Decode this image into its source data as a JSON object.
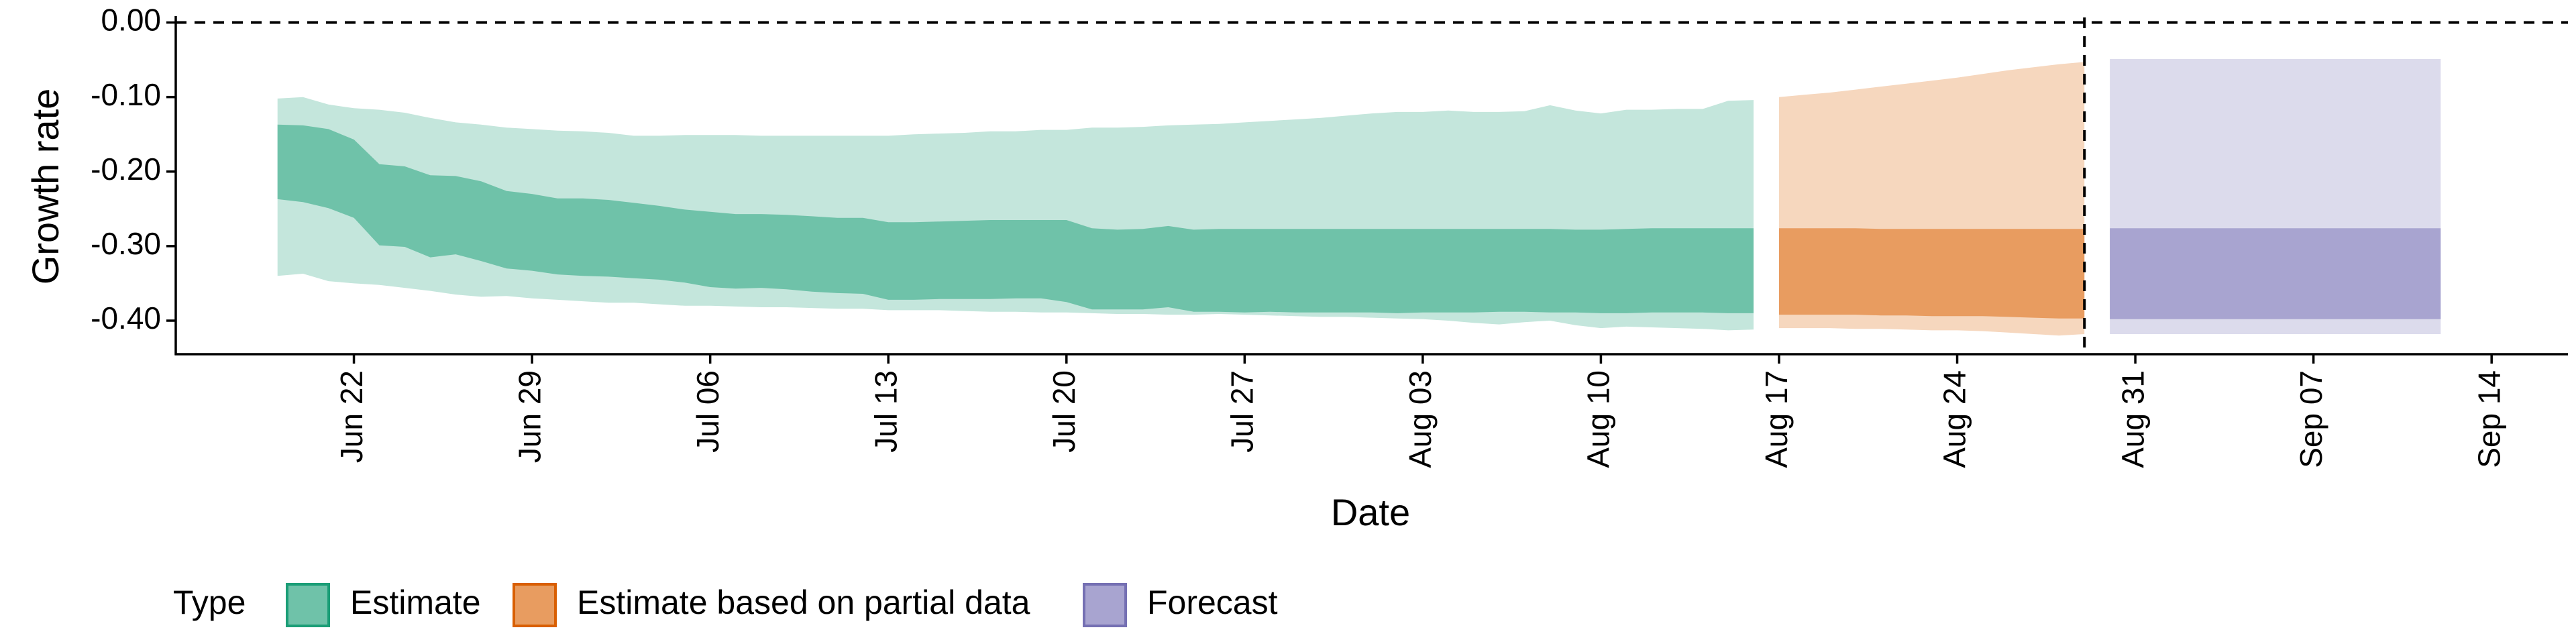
{
  "chart_data": {
    "type": "area",
    "xlabel": "Date",
    "ylabel": "Growth rate",
    "ylim": [
      -0.445,
      0.005
    ],
    "xlim": [
      "2020-06-15",
      "2020-09-17"
    ],
    "x_ticks": [
      "2020-06-22",
      "2020-06-29",
      "2020-07-06",
      "2020-07-13",
      "2020-07-20",
      "2020-07-27",
      "2020-08-03",
      "2020-08-10",
      "2020-08-17",
      "2020-08-24",
      "2020-08-31",
      "2020-09-07",
      "2020-09-14"
    ],
    "x_tick_labels": [
      "Jun 22",
      "Jun 29",
      "Jul 06",
      "Jul 13",
      "Jul 20",
      "Jul 27",
      "Aug 03",
      "Aug 10",
      "Aug 17",
      "Aug 24",
      "Aug 31",
      "Sep 07",
      "Sep 14"
    ],
    "y_ticks": [
      0.0,
      -0.1,
      -0.2,
      -0.3,
      -0.4
    ],
    "y_tick_labels": [
      "0.00",
      "-0.10",
      "-0.20",
      "-0.30",
      "-0.40"
    ],
    "reference_lines": {
      "horizontal_y": 0.0,
      "vertical_x": "2020-08-29",
      "style": "dashed"
    },
    "legend": {
      "title": "Type",
      "position": "bottom-left",
      "entries": [
        "Estimate",
        "Estimate based on partial data",
        "Forecast"
      ]
    },
    "colors": {
      "Estimate": {
        "outer": "#c4e6dc",
        "inner": "#6fc2a9",
        "key_fill": "#6fc2a9",
        "key_border": "#1b9e77"
      },
      "Estimate based on partial data": {
        "outer": "#f6d7be",
        "inner": "#e89c60",
        "key_fill": "#e89c60",
        "key_border": "#d95f02"
      },
      "Forecast": {
        "outer": "#dcdbec",
        "inner": "#a8a4d0",
        "key_fill": "#a8a4d0",
        "key_border": "#7570b3"
      }
    },
    "series": [
      {
        "name": "Estimate",
        "x": [
          "2020-06-19",
          "2020-06-20",
          "2020-06-21",
          "2020-06-22",
          "2020-06-23",
          "2020-06-24",
          "2020-06-25",
          "2020-06-26",
          "2020-06-27",
          "2020-06-28",
          "2020-06-29",
          "2020-06-30",
          "2020-07-01",
          "2020-07-02",
          "2020-07-03",
          "2020-07-04",
          "2020-07-05",
          "2020-07-06",
          "2020-07-07",
          "2020-07-08",
          "2020-07-09",
          "2020-07-10",
          "2020-07-11",
          "2020-07-12",
          "2020-07-13",
          "2020-07-14",
          "2020-07-15",
          "2020-07-16",
          "2020-07-17",
          "2020-07-18",
          "2020-07-19",
          "2020-07-20",
          "2020-07-21",
          "2020-07-22",
          "2020-07-23",
          "2020-07-24",
          "2020-07-25",
          "2020-07-26",
          "2020-07-27",
          "2020-07-28",
          "2020-07-29",
          "2020-07-30",
          "2020-07-31",
          "2020-08-01",
          "2020-08-02",
          "2020-08-03",
          "2020-08-04",
          "2020-08-05",
          "2020-08-06",
          "2020-08-07",
          "2020-08-08",
          "2020-08-09",
          "2020-08-10",
          "2020-08-11",
          "2020-08-12",
          "2020-08-13",
          "2020-08-14",
          "2020-08-15",
          "2020-08-16"
        ],
        "lower_90": [
          -0.34,
          -0.337,
          -0.347,
          -0.35,
          -0.352,
          -0.356,
          -0.36,
          -0.365,
          -0.368,
          -0.367,
          -0.37,
          -0.372,
          -0.374,
          -0.376,
          -0.376,
          -0.378,
          -0.38,
          -0.38,
          -0.381,
          -0.382,
          -0.382,
          -0.383,
          -0.384,
          -0.384,
          -0.386,
          -0.386,
          -0.386,
          -0.387,
          -0.388,
          -0.388,
          -0.389,
          -0.389,
          -0.39,
          -0.391,
          -0.391,
          -0.392,
          -0.392,
          -0.391,
          -0.392,
          -0.393,
          -0.394,
          -0.395,
          -0.395,
          -0.396,
          -0.397,
          -0.398,
          -0.4,
          -0.403,
          -0.405,
          -0.402,
          -0.4,
          -0.406,
          -0.41,
          -0.408,
          -0.409,
          -0.41,
          -0.411,
          -0.413,
          -0.412
        ],
        "lower_50": [
          -0.237,
          -0.241,
          -0.249,
          -0.262,
          -0.299,
          -0.301,
          -0.315,
          -0.311,
          -0.32,
          -0.33,
          -0.333,
          -0.338,
          -0.34,
          -0.341,
          -0.343,
          -0.345,
          -0.349,
          -0.355,
          -0.357,
          -0.356,
          -0.358,
          -0.361,
          -0.363,
          -0.364,
          -0.372,
          -0.372,
          -0.371,
          -0.371,
          -0.371,
          -0.37,
          -0.37,
          -0.375,
          -0.385,
          -0.385,
          -0.385,
          -0.382,
          -0.388,
          -0.388,
          -0.389,
          -0.388,
          -0.389,
          -0.389,
          -0.389,
          -0.389,
          -0.39,
          -0.389,
          -0.389,
          -0.389,
          -0.388,
          -0.388,
          -0.389,
          -0.389,
          -0.39,
          -0.39,
          -0.389,
          -0.389,
          -0.389,
          -0.39,
          -0.39
        ],
        "upper_50": [
          -0.137,
          -0.138,
          -0.143,
          -0.157,
          -0.19,
          -0.193,
          -0.205,
          -0.206,
          -0.213,
          -0.226,
          -0.23,
          -0.236,
          -0.236,
          -0.238,
          -0.242,
          -0.246,
          -0.251,
          -0.254,
          -0.257,
          -0.257,
          -0.258,
          -0.26,
          -0.262,
          -0.262,
          -0.268,
          -0.268,
          -0.267,
          -0.266,
          -0.265,
          -0.265,
          -0.265,
          -0.265,
          -0.276,
          -0.278,
          -0.277,
          -0.273,
          -0.278,
          -0.277,
          -0.277,
          -0.277,
          -0.277,
          -0.277,
          -0.277,
          -0.277,
          -0.277,
          -0.277,
          -0.277,
          -0.277,
          -0.277,
          -0.277,
          -0.277,
          -0.278,
          -0.278,
          -0.277,
          -0.276,
          -0.276,
          -0.276,
          -0.276,
          -0.276
        ],
        "upper_90": [
          -0.102,
          -0.1,
          -0.11,
          -0.115,
          -0.117,
          -0.121,
          -0.128,
          -0.134,
          -0.137,
          -0.141,
          -0.143,
          -0.145,
          -0.146,
          -0.148,
          -0.152,
          -0.152,
          -0.151,
          -0.151,
          -0.151,
          -0.152,
          -0.152,
          -0.152,
          -0.152,
          -0.152,
          -0.152,
          -0.15,
          -0.149,
          -0.148,
          -0.146,
          -0.146,
          -0.144,
          -0.144,
          -0.141,
          -0.141,
          -0.14,
          -0.138,
          -0.137,
          -0.136,
          -0.134,
          -0.132,
          -0.13,
          -0.128,
          -0.125,
          -0.122,
          -0.12,
          -0.12,
          -0.118,
          -0.12,
          -0.12,
          -0.119,
          -0.111,
          -0.118,
          -0.122,
          -0.117,
          -0.117,
          -0.116,
          -0.116,
          -0.105,
          -0.104
        ]
      },
      {
        "name": "Estimate based on partial data",
        "x": [
          "2020-08-17",
          "2020-08-18",
          "2020-08-19",
          "2020-08-20",
          "2020-08-21",
          "2020-08-22",
          "2020-08-23",
          "2020-08-24",
          "2020-08-25",
          "2020-08-26",
          "2020-08-27",
          "2020-08-28",
          "2020-08-29"
        ],
        "lower_90": [
          -0.41,
          -0.41,
          -0.41,
          -0.411,
          -0.411,
          -0.412,
          -0.413,
          -0.413,
          -0.414,
          -0.416,
          -0.418,
          -0.42,
          -0.418
        ],
        "lower_50": [
          -0.392,
          -0.392,
          -0.392,
          -0.392,
          -0.393,
          -0.393,
          -0.394,
          -0.394,
          -0.394,
          -0.395,
          -0.396,
          -0.397,
          -0.397
        ],
        "upper_50": [
          -0.276,
          -0.276,
          -0.276,
          -0.276,
          -0.277,
          -0.277,
          -0.277,
          -0.277,
          -0.277,
          -0.277,
          -0.277,
          -0.277,
          -0.277
        ],
        "upper_90": [
          -0.1,
          -0.097,
          -0.094,
          -0.09,
          -0.086,
          -0.082,
          -0.078,
          -0.074,
          -0.069,
          -0.064,
          -0.06,
          -0.056,
          -0.053
        ]
      },
      {
        "name": "Forecast",
        "x": [
          "2020-08-30",
          "2020-09-12"
        ],
        "lower_90": [
          -0.418,
          -0.418
        ],
        "lower_50": [
          -0.398,
          -0.398
        ],
        "upper_50": [
          -0.276,
          -0.276
        ],
        "upper_90": [
          -0.049,
          -0.049
        ]
      }
    ]
  }
}
